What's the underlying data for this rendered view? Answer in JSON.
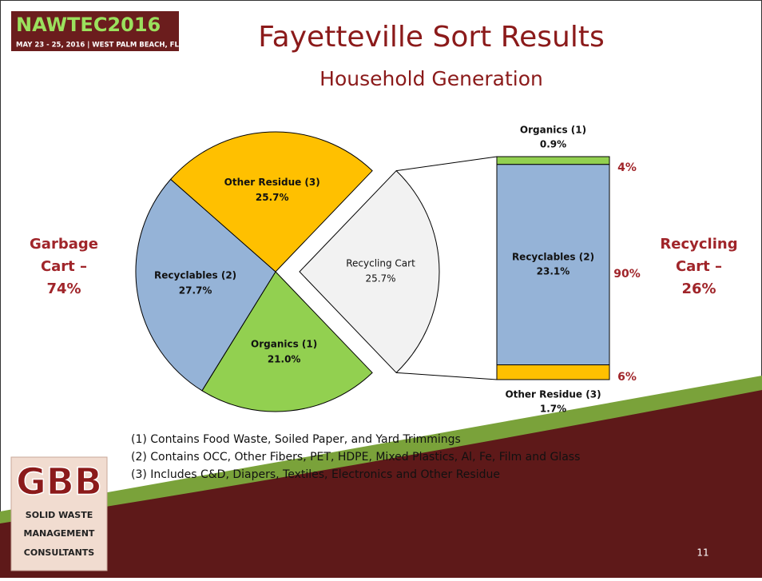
{
  "header": {
    "event": "NAWTEC2016",
    "event_detail": "MAY 23 - 25, 2016 | WEST PALM BEACH, FL",
    "title": "Fayetteville Sort Results",
    "subtitle": "Household Generation"
  },
  "chart_data": {
    "type": "pie",
    "categories": [
      "Recycling Cart",
      "Organics (1)",
      "Recyclables (2)",
      "Other Residue (3)"
    ],
    "values": [
      25.7,
      21.0,
      27.7,
      25.7
    ],
    "value_labels": [
      "25.7%",
      "21.0%",
      "27.7%",
      "25.7%"
    ],
    "colors": [
      "#f2f2f2",
      "#92d050",
      "#95b3d7",
      "#ffc000"
    ],
    "breakout": {
      "type": "bar",
      "categories": [
        "Organics (1)",
        "Recyclables (2)",
        "Other Residue (3)"
      ],
      "values": [
        0.9,
        23.1,
        1.7
      ],
      "value_labels": [
        "0.9%",
        "23.1%",
        "1.7%"
      ],
      "colors": [
        "#92d050",
        "#95b3d7",
        "#ffc000"
      ],
      "percent_labels": [
        "4%",
        "90%",
        "6%"
      ]
    }
  },
  "side_labels": {
    "left": [
      "Garbage",
      "Cart –",
      "74%"
    ],
    "right": [
      "Recycling",
      "Cart –",
      "26%"
    ]
  },
  "footnotes": [
    "(1) Contains Food Waste, Soiled Paper, and Yard Trimmings",
    "(2) Contains OCC, Other Fibers, PET, HDPE, Mixed Plastics, Al, Fe, Film and Glass",
    "(3) Includes C&D, Diapers, Textiles, Electronics and Other Residue"
  ],
  "logo": {
    "mark": "GBB",
    "lines": [
      "SOLID WASTE",
      "MANAGEMENT",
      "CONSULTANTS"
    ]
  },
  "page_number": "11"
}
